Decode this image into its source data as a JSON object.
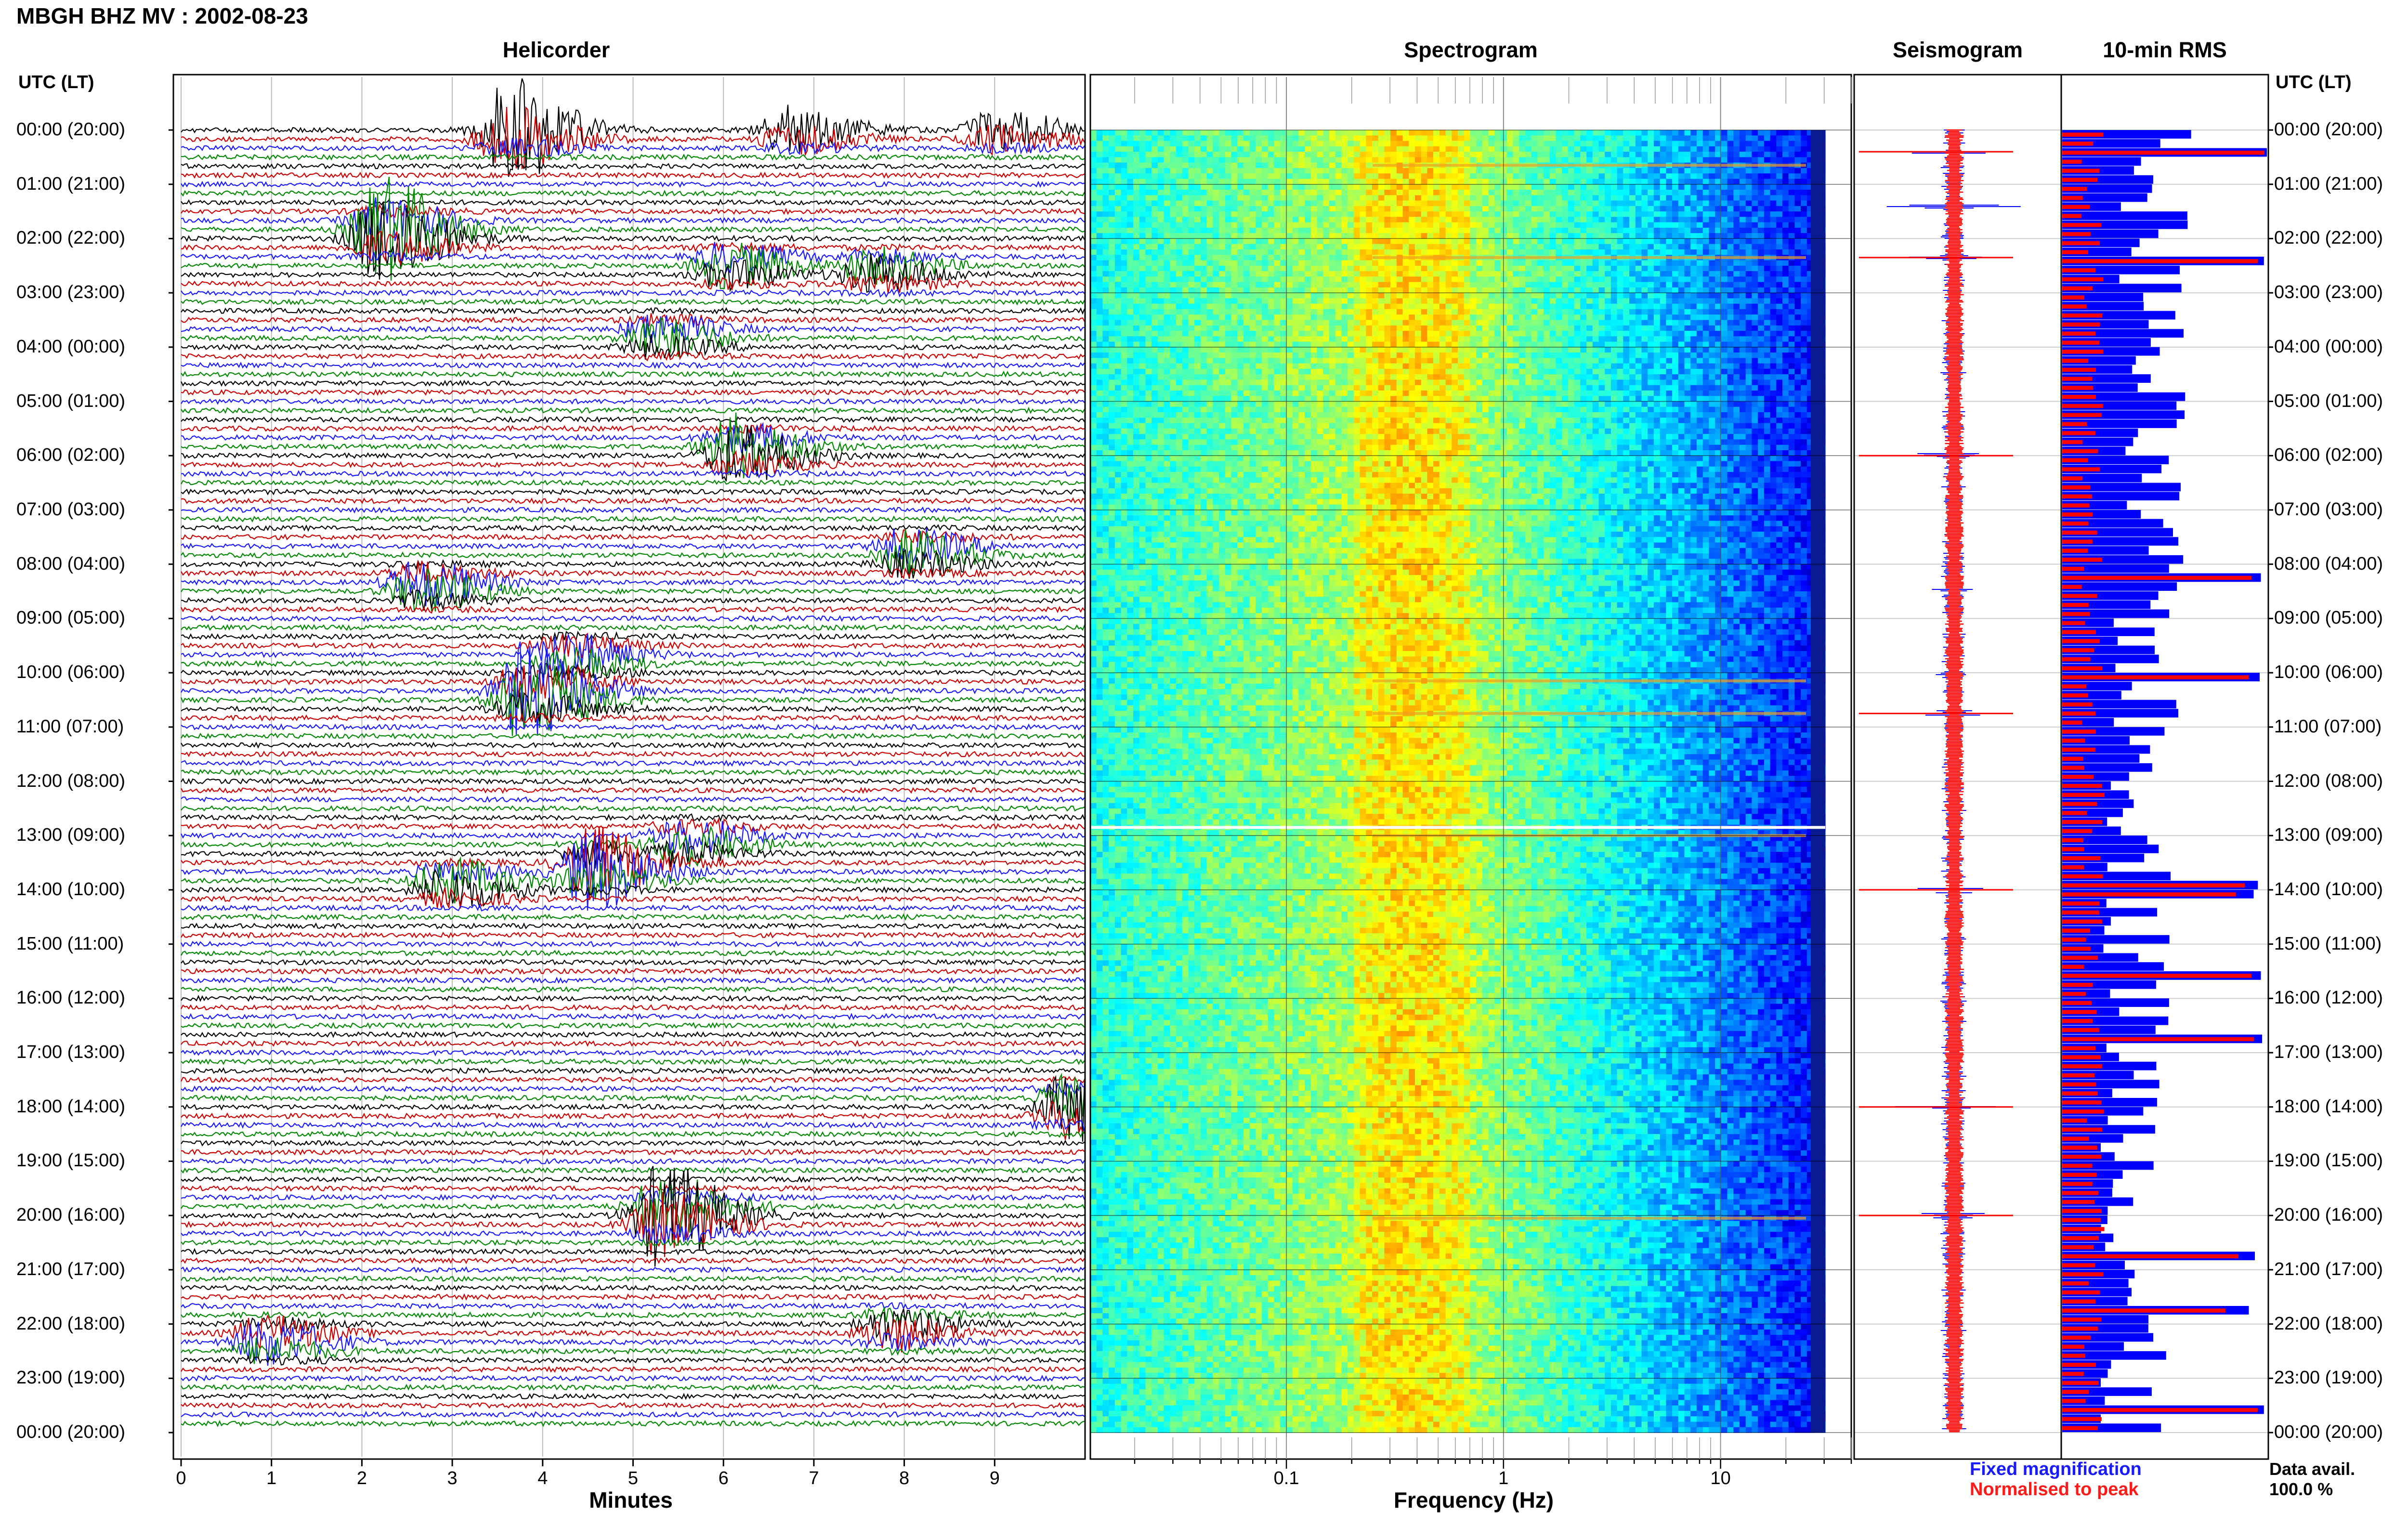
{
  "header": {
    "station": "MBGH BHZ MV : 2002-08-23"
  },
  "panels": {
    "helicorder": "Helicorder",
    "spectrogram": "Spectrogram",
    "seismogram": "Seismogram",
    "rms": "10-min RMS"
  },
  "axes": {
    "tz_left": "UTC (LT)",
    "tz_right": "UTC (LT)",
    "helicorder_xlabel": "Minutes",
    "spectrogram_xlabel": "Frequency (Hz)"
  },
  "legend": {
    "fixed": "Fixed magnification",
    "normalised": "Normalised to peak"
  },
  "availability": {
    "label": "Data avail.",
    "value": "100.0 %"
  },
  "colors": {
    "trace_cycle": [
      "#000000",
      "#cc0000",
      "#1a1aff",
      "#008800"
    ],
    "fixed_magnification": "#0000ff",
    "normalised_to_peak": "#ff0000"
  },
  "chart_data": {
    "type": "heatmap",
    "time_labels": [
      "00:00 (20:00)",
      "01:00 (21:00)",
      "02:00 (22:00)",
      "03:00 (23:00)",
      "04:00 (00:00)",
      "05:00 (01:00)",
      "06:00 (02:00)",
      "07:00 (03:00)",
      "08:00 (04:00)",
      "09:00 (05:00)",
      "10:00 (06:00)",
      "11:00 (07:00)",
      "12:00 (08:00)",
      "13:00 (09:00)",
      "14:00 (10:00)",
      "15:00 (11:00)",
      "16:00 (12:00)",
      "17:00 (13:00)",
      "18:00 (14:00)",
      "19:00 (15:00)",
      "20:00 (16:00)",
      "21:00 (17:00)",
      "22:00 (18:00)",
      "23:00 (19:00)",
      "00:00 (20:00)"
    ],
    "helicorder": {
      "xlabel": "Minutes",
      "xticks": [
        "0",
        "1",
        "2",
        "3",
        "4",
        "5",
        "6",
        "7",
        "8",
        "9"
      ],
      "xlim": [
        0,
        10
      ],
      "events": [
        {
          "hour": 0.0,
          "minute": 3.6,
          "amp": 3.0
        },
        {
          "hour": 0.0,
          "minute": 6.7,
          "amp": 1.4
        },
        {
          "hour": 0.0,
          "minute": 9.0,
          "amp": 1.2
        },
        {
          "hour": 1.9,
          "minute": 2.2,
          "amp": 3.2
        },
        {
          "hour": 2.5,
          "minute": 6.0,
          "amp": 1.3
        },
        {
          "hour": 2.6,
          "minute": 7.6,
          "amp": 1.2
        },
        {
          "hour": 3.8,
          "minute": 5.2,
          "amp": 1.2
        },
        {
          "hour": 5.9,
          "minute": 6.1,
          "amp": 2.0
        },
        {
          "hour": 7.8,
          "minute": 8.0,
          "amp": 1.4
        },
        {
          "hour": 8.4,
          "minute": 2.6,
          "amp": 1.5
        },
        {
          "hour": 10.4,
          "minute": 3.8,
          "amp": 3.0
        },
        {
          "hour": 9.7,
          "minute": 4.2,
          "amp": 1.3
        },
        {
          "hour": 13.1,
          "minute": 5.5,
          "amp": 1.3
        },
        {
          "hour": 13.6,
          "minute": 4.5,
          "amp": 2.4
        },
        {
          "hour": 13.9,
          "minute": 2.9,
          "amp": 1.4
        },
        {
          "hour": 18.0,
          "minute": 9.8,
          "amp": 2.0
        },
        {
          "hour": 20.0,
          "minute": 5.3,
          "amp": 3.0
        },
        {
          "hour": 22.3,
          "minute": 0.9,
          "amp": 1.4
        },
        {
          "hour": 22.1,
          "minute": 7.8,
          "amp": 1.1
        }
      ]
    },
    "spectrogram": {
      "xlabel": "Frequency (Hz)",
      "scale": "log",
      "xlim": [
        0.0125,
        40
      ],
      "xticks": [
        "0.1",
        "1",
        "10"
      ],
      "peak_band_hz": [
        0.2,
        0.7
      ]
    },
    "seismogram": {
      "series": [
        {
          "name": "Fixed magnification",
          "color": "#0000ff"
        },
        {
          "name": "Normalised to peak",
          "color": "#ff0000"
        }
      ]
    },
    "rms": {
      "interval_minutes": 10,
      "series": [
        {
          "name": "Fixed magnification",
          "color": "#0000ff"
        },
        {
          "name": "Normalised to peak",
          "color": "#ff0000"
        }
      ]
    }
  }
}
